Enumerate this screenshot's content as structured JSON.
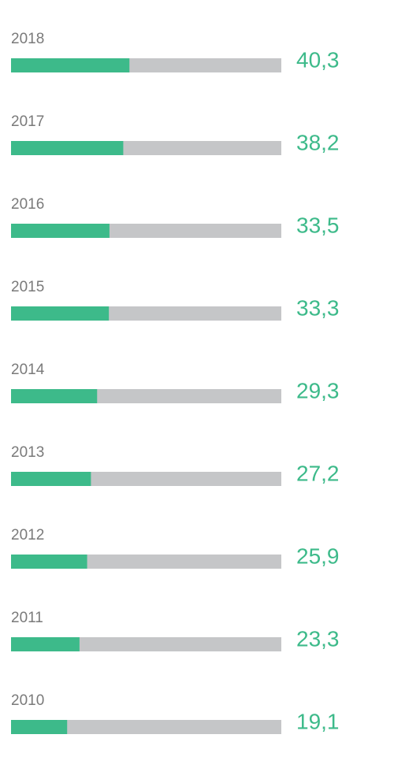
{
  "chart_data": {
    "type": "bar",
    "orientation": "horizontal",
    "categories": [
      "2018",
      "2017",
      "2016",
      "2015",
      "2014",
      "2013",
      "2012",
      "2011",
      "2010"
    ],
    "values": [
      40.3,
      38.2,
      33.5,
      33.3,
      29.3,
      27.2,
      25.9,
      23.3,
      19.1
    ],
    "value_labels": [
      "40,3",
      "38,2",
      "33,5",
      "33,3",
      "29,3",
      "27,2",
      "25,9",
      "23,3",
      "19,1"
    ],
    "xlim": [
      0,
      92
    ],
    "color": "#3dba8a",
    "track_color": "#c5c6c8",
    "label_color": "#3dba8a"
  }
}
